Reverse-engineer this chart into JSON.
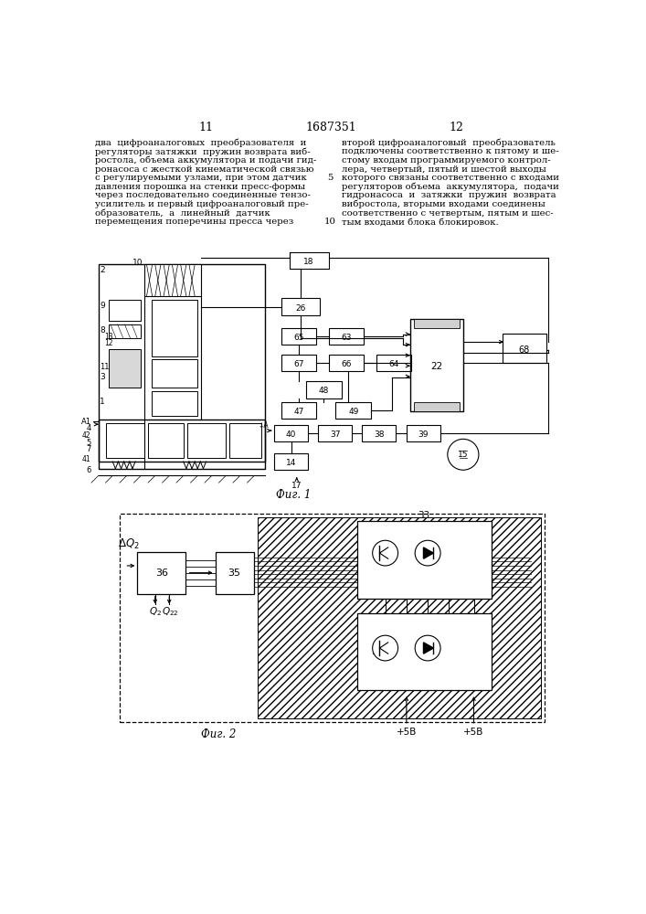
{
  "page_num_left": "11",
  "page_num_center": "1687351",
  "page_num_right": "12",
  "text_left_lines": [
    "два  цифроаналоговых  преобразователя  и",
    "регуляторы затяжки  пружин возврата виб-",
    "ростола, объема аккумулятора и подачи гид-",
    "ронасоса с жесткой кинематической связью",
    "с регулируемыми узлами, при этом датчик",
    "давления порошка на стенки пресс-формы",
    "через последовательно соединенные тензо-",
    "усилитель и первый цифроаналоговый пре-",
    "образователь,  а  линейный  датчик",
    "перемещения поперечины пресса через"
  ],
  "text_right_lines": [
    "второй цифроаналоговый  преобразователь",
    "подключены соответственно к пятому и ше-",
    "стому входам программируемого контрол-",
    "лера, четвертый, пятый и шестой выходы",
    "которого связаны соответственно с входами",
    "регуляторов объема  аккумулятора,  подачи",
    "гидронасоса  и  затяжки  пружин  возврата",
    "вибростола, вторыми входами соединены",
    "соответственно с четвертым, пятым и шес-",
    "тым входами блока блокировок."
  ],
  "line_num_5_row": 4,
  "line_num_10_row": 9,
  "fig1_caption": "Фиг. 1",
  "fig2_caption": "Фиг. 2",
  "background": "#ffffff"
}
